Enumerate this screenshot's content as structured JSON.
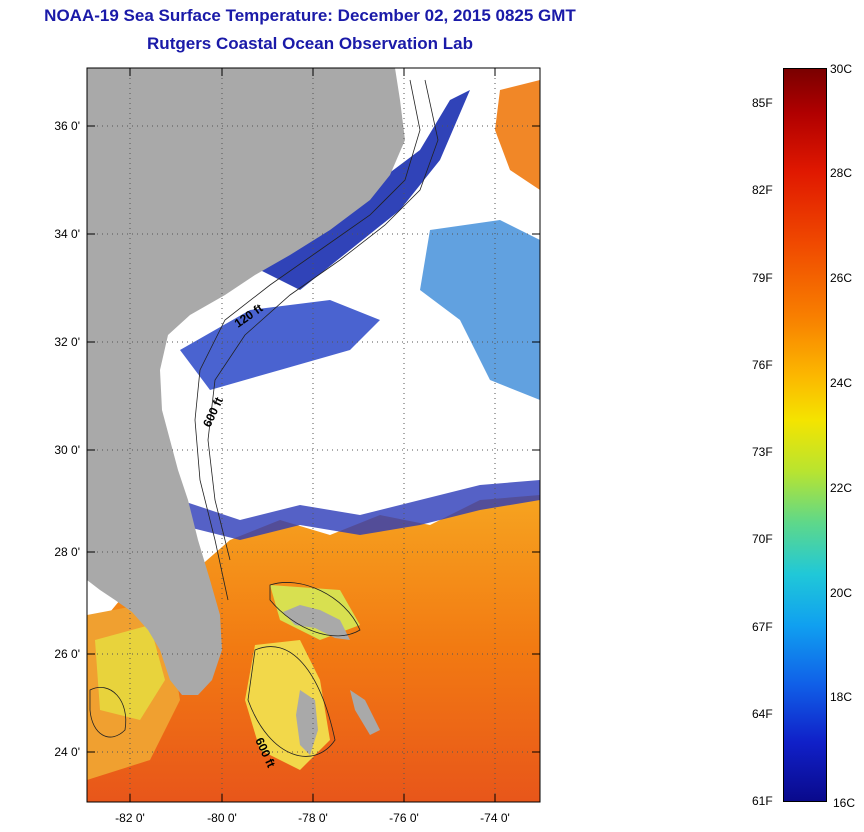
{
  "header": {
    "title": "NOAA-19 Sea Surface Temperature:  December 02, 2015 0825 GMT",
    "subtitle": "Rutgers Coastal Ocean Observation Lab"
  },
  "map": {
    "lat_labels": [
      "36 0'",
      "34 0'",
      "32 0'",
      "30 0'",
      "28 0'",
      "26 0'",
      "24 0'"
    ],
    "lon_labels": [
      "-82 0'",
      "-80 0'",
      "-78 0'",
      "-76 0'",
      "-74 0'"
    ],
    "contour_labels": [
      "120 ft",
      "600 ft",
      "600 ft"
    ],
    "colors": {
      "land": "#a9a9a9",
      "cloud": "#ffffff",
      "cold": "#1a2fb0",
      "warm": "#f07a10"
    }
  },
  "colorbar": {
    "top_label": "30C",
    "bottom_label": "16C",
    "fahrenheit": [
      "85F",
      "82F",
      "79F",
      "76F",
      "73F",
      "70F",
      "67F",
      "64F",
      "61F"
    ],
    "celsius": [
      "28C",
      "26C",
      "24C",
      "22C",
      "20C",
      "18C"
    ]
  }
}
